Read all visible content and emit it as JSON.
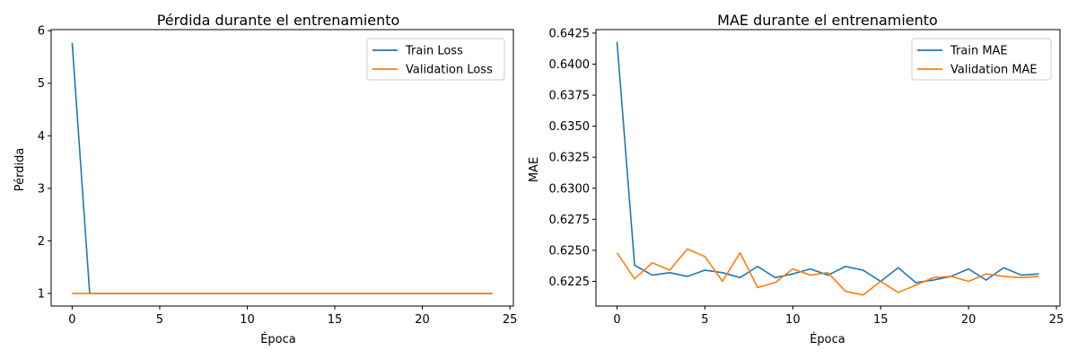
{
  "chart_data": [
    {
      "type": "line",
      "title": "Pérdida durante el entrenamiento",
      "xlabel": "Época",
      "ylabel": "Pérdida",
      "xlim": [
        -1.2,
        25.2
      ],
      "ylim": [
        0.76,
        6.02
      ],
      "xticks": [
        0,
        5,
        10,
        15,
        20,
        25
      ],
      "yticks": [
        1,
        2,
        3,
        4,
        5,
        6
      ],
      "ytick_decimals": 0,
      "legend_position": "top-right",
      "grid": false,
      "x": [
        0,
        1,
        2,
        3,
        4,
        5,
        6,
        7,
        8,
        9,
        10,
        11,
        12,
        13,
        14,
        15,
        16,
        17,
        18,
        19,
        20,
        21,
        22,
        23,
        24
      ],
      "series": [
        {
          "name": "Train Loss",
          "color": "#1f77b4",
          "values": [
            5.77,
            1.0,
            1.0,
            1.0,
            1.0,
            1.0,
            1.0,
            1.0,
            1.0,
            1.0,
            1.0,
            1.0,
            1.0,
            1.0,
            1.0,
            1.0,
            1.0,
            1.0,
            1.0,
            1.0,
            1.0,
            1.0,
            1.0,
            1.0,
            1.0
          ]
        },
        {
          "name": "Validation Loss",
          "color": "#ff7f0e",
          "values": [
            1.0,
            1.0,
            1.0,
            1.0,
            1.0,
            1.0,
            1.0,
            1.0,
            1.0,
            1.0,
            1.0,
            1.0,
            1.0,
            1.0,
            1.0,
            1.0,
            1.0,
            1.0,
            1.0,
            1.0,
            1.0,
            1.0,
            1.0,
            1.0,
            1.0
          ]
        }
      ]
    },
    {
      "type": "line",
      "title": "MAE durante el entrenamiento",
      "xlabel": "Época",
      "ylabel": "MAE",
      "xlim": [
        -1.2,
        25.2
      ],
      "ylim": [
        0.62051,
        0.64278
      ],
      "xticks": [
        0,
        5,
        10,
        15,
        20,
        25
      ],
      "yticks": [
        0.6225,
        0.625,
        0.6275,
        0.63,
        0.6325,
        0.635,
        0.6375,
        0.64,
        0.6425
      ],
      "ytick_decimals": 4,
      "legend_position": "top-right",
      "grid": false,
      "x": [
        0,
        1,
        2,
        3,
        4,
        5,
        6,
        7,
        8,
        9,
        10,
        11,
        12,
        13,
        14,
        15,
        16,
        17,
        18,
        19,
        20,
        21,
        22,
        23,
        24
      ],
      "series": [
        {
          "name": "Train MAE",
          "color": "#1f77b4",
          "values": [
            0.6418,
            0.6238,
            0.623,
            0.6232,
            0.6229,
            0.6234,
            0.6232,
            0.6228,
            0.6237,
            0.6228,
            0.6231,
            0.6235,
            0.623,
            0.6237,
            0.6234,
            0.6225,
            0.6236,
            0.6224,
            0.6226,
            0.6229,
            0.6235,
            0.6226,
            0.6236,
            0.623,
            0.6231
          ]
        },
        {
          "name": "Validation MAE",
          "color": "#ff7f0e",
          "values": [
            0.6248,
            0.6227,
            0.624,
            0.6234,
            0.6251,
            0.6245,
            0.6225,
            0.6248,
            0.622,
            0.6224,
            0.6235,
            0.623,
            0.6232,
            0.6217,
            0.6214,
            0.6225,
            0.6216,
            0.6222,
            0.6228,
            0.6229,
            0.6225,
            0.6231,
            0.6229,
            0.6228,
            0.6229
          ]
        }
      ]
    }
  ]
}
